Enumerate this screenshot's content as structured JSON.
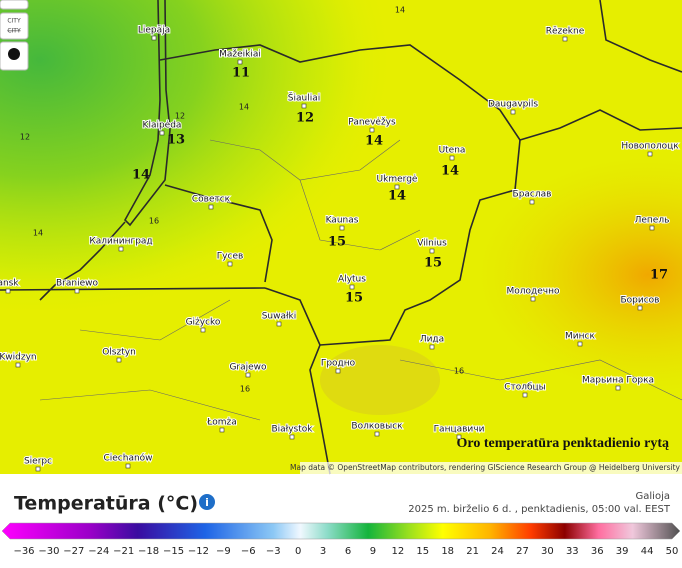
{
  "controls": {
    "city_label": "CITY",
    "city_struck": "CITY"
  },
  "map": {
    "cities": [
      "Liepāja",
      "Mažeikiai",
      "Šiauliai",
      "Panevėžys",
      "Rēzekne",
      "Daugavpils",
      "Utena",
      "Новополоцк",
      "Klaipėda",
      "Ukmergė",
      "Браслав",
      "Советск",
      "Kaunas",
      "Лепель",
      "Калининград",
      "Vilnius",
      "Гусев",
      "Alytus",
      "ansk",
      "Braniewo",
      "Молодечно",
      "Борисов",
      "Giżycko",
      "Suwałki",
      "Минск",
      "Kwidzyn",
      "Olsztyn",
      "Лида",
      "Гродно",
      "Grajewo",
      "Марьина Горка",
      "Столбцы",
      "Łomża",
      "Białystok",
      "Волковыск",
      "Ганцавичи",
      "Sierpc",
      "Ciechanów"
    ],
    "temperatures": [
      "11",
      "12",
      "13",
      "14",
      "14",
      "14",
      "14",
      "15",
      "15",
      "15",
      "17"
    ],
    "small_temperatures": [
      "14",
      "12",
      "12",
      "14",
      "16",
      "14",
      "16",
      "16"
    ],
    "caption": "Oro temperatūra penktadienio rytą",
    "attribution": "Map data © OpenStreetMap contributors, rendering GIScience Research Group @ Heidelberg University"
  },
  "legend": {
    "title": "Temperatūra (°C)",
    "valid_label": "Galioja",
    "valid_time": "2025 m. birželio 6 d. ,  penktadienis, 05:00 val. EEST",
    "ticks": [
      "−36",
      "−30",
      "−27",
      "−24",
      "−21",
      "−18",
      "−15",
      "−12",
      "−9",
      "−6",
      "−3",
      "0",
      "3",
      "6",
      "9",
      "12",
      "15",
      "18",
      "21",
      "24",
      "27",
      "30",
      "33",
      "36",
      "39",
      "44",
      "50"
    ]
  }
}
